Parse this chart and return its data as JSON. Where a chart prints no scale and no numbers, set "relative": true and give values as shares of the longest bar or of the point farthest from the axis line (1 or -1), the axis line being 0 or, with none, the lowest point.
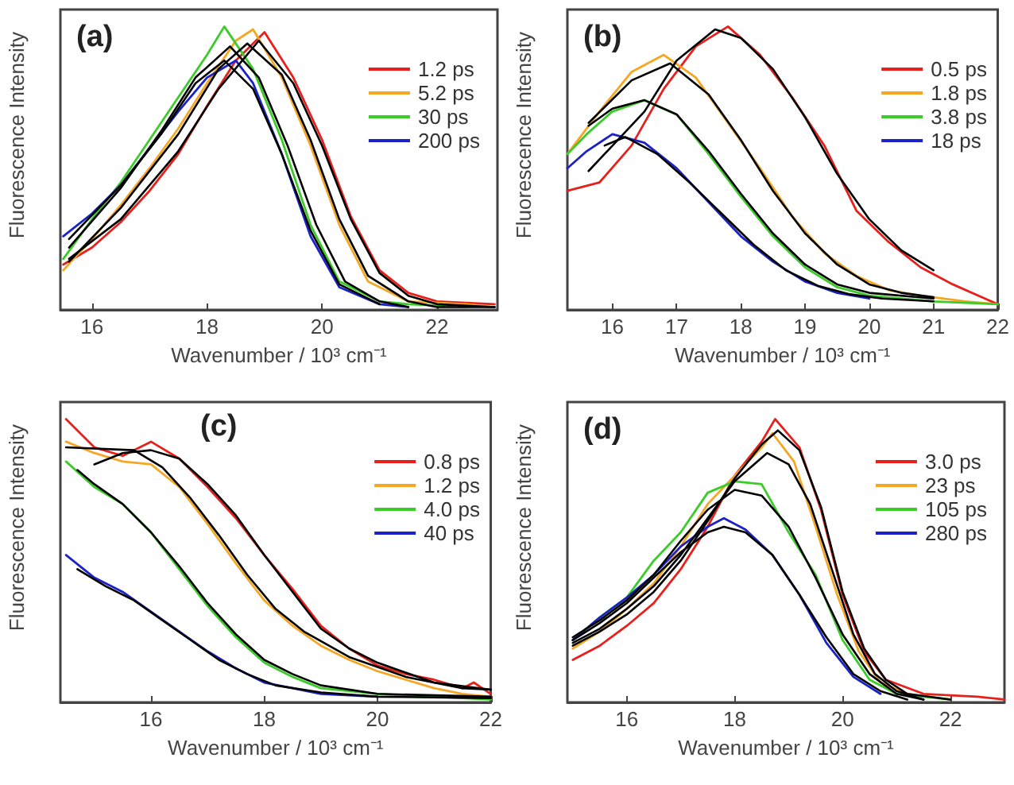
{
  "chart_data": [
    {
      "type": "line",
      "relative": true,
      "xlabel": "Wavenumber / 10³ cm⁻¹",
      "ylabel": "Fluorescence Intensity",
      "annotations": [
        "(a)"
      ],
      "xlim": [
        15.45,
        23.05
      ],
      "xticks": [
        16,
        18,
        20,
        22
      ],
      "legend": "top right",
      "marker": "none",
      "line_style": "solid",
      "grid": false,
      "series": [
        {
          "name": "1.2 ps",
          "color": "#e8201c",
          "x": [
            15.5,
            16,
            16.5,
            17,
            17.5,
            18,
            18.5,
            19,
            19.5,
            20,
            20.5,
            21,
            21.5,
            22,
            23
          ],
          "values": [
            0.16,
            0.22,
            0.31,
            0.42,
            0.55,
            0.72,
            0.88,
            0.98,
            0.82,
            0.6,
            0.33,
            0.14,
            0.06,
            0.03,
            0.02
          ]
        },
        {
          "name": "5.2 ps",
          "color": "#f5a623",
          "x": [
            15.5,
            16,
            16.5,
            17,
            17.5,
            18,
            18.5,
            18.8,
            19.3,
            19.8,
            20.3,
            20.8,
            21.5,
            22.5,
            23
          ],
          "values": [
            0.14,
            0.25,
            0.37,
            0.5,
            0.64,
            0.8,
            0.95,
            0.99,
            0.82,
            0.58,
            0.3,
            0.1,
            0.03,
            0.02,
            0.01
          ]
        },
        {
          "name": "30 ps",
          "color": "#3ccc2a",
          "x": [
            15.5,
            16,
            16.5,
            17,
            17.5,
            18,
            18.3,
            18.8,
            19.3,
            19.8,
            20.3,
            21,
            21.5,
            22.5
          ],
          "values": [
            0.18,
            0.32,
            0.45,
            0.6,
            0.75,
            0.9,
            1.0,
            0.85,
            0.6,
            0.3,
            0.1,
            0.03,
            0.02,
            0.01
          ]
        },
        {
          "name": "200 ps",
          "color": "#1a22c8",
          "x": [
            15.5,
            16,
            16.5,
            17,
            17.5,
            18,
            18.5,
            18.8,
            19.3,
            19.8,
            20.3,
            21,
            21.5
          ],
          "values": [
            0.26,
            0.34,
            0.44,
            0.57,
            0.7,
            0.82,
            0.88,
            0.8,
            0.55,
            0.26,
            0.08,
            0.02,
            0.01
          ]
        },
        {
          "color": "#000000",
          "x": [
            15.6,
            16.5,
            17.5,
            18.2,
            18.9,
            19.5,
            20,
            20.5,
            21,
            21.5,
            22,
            23
          ],
          "values": [
            0.18,
            0.32,
            0.56,
            0.78,
            0.95,
            0.8,
            0.58,
            0.32,
            0.13,
            0.05,
            0.02,
            0.01
          ]
        },
        {
          "color": "#000000",
          "x": [
            15.6,
            16.5,
            17.5,
            18.2,
            18.7,
            19.3,
            19.8,
            20.3,
            20.8,
            21.5,
            22,
            23
          ],
          "values": [
            0.17,
            0.36,
            0.62,
            0.85,
            0.94,
            0.83,
            0.6,
            0.32,
            0.12,
            0.03,
            0.01,
            0.01
          ]
        },
        {
          "color": "#000000",
          "x": [
            15.6,
            16.5,
            17.2,
            17.8,
            18.4,
            18.9,
            19.4,
            19.9,
            20.4,
            21,
            21.5
          ],
          "values": [
            0.22,
            0.43,
            0.63,
            0.82,
            0.93,
            0.82,
            0.58,
            0.3,
            0.1,
            0.03,
            0.01
          ]
        },
        {
          "color": "#000000",
          "x": [
            15.6,
            16.5,
            17.2,
            17.8,
            18.3,
            18.8,
            19.3,
            19.8,
            20.3,
            21
          ],
          "values": [
            0.25,
            0.44,
            0.62,
            0.8,
            0.88,
            0.78,
            0.55,
            0.28,
            0.09,
            0.02
          ]
        }
      ]
    },
    {
      "type": "line",
      "relative": true,
      "xlabel": "Wavenumber / 10³ cm⁻¹",
      "ylabel": "Fluorescence Intensity",
      "annotations": [
        "(b)"
      ],
      "xlim": [
        15.3,
        22
      ],
      "xticks": [
        16,
        17,
        18,
        19,
        20,
        21,
        22
      ],
      "legend": "top right",
      "marker": "none",
      "line_style": "solid",
      "grid": false,
      "series": [
        {
          "name": "0.5 ps",
          "color": "#e8201c",
          "x": [
            15.3,
            15.8,
            16.3,
            16.8,
            17.3,
            17.8,
            18.3,
            18.8,
            19.3,
            19.8,
            20.3,
            20.8,
            21.3,
            21.8,
            22
          ],
          "values": [
            0.42,
            0.45,
            0.58,
            0.78,
            0.93,
            1.0,
            0.9,
            0.75,
            0.58,
            0.35,
            0.24,
            0.15,
            0.09,
            0.04,
            0.02
          ]
        },
        {
          "name": "1.8 ps",
          "color": "#f5a623",
          "x": [
            15.3,
            15.8,
            16.3,
            16.8,
            17.3,
            17.8,
            18.3,
            18.8,
            19.3,
            19.8,
            20.3,
            20.8,
            21.5,
            22
          ],
          "values": [
            0.55,
            0.7,
            0.84,
            0.9,
            0.82,
            0.66,
            0.5,
            0.33,
            0.2,
            0.12,
            0.07,
            0.05,
            0.03,
            0.02
          ]
        },
        {
          "name": "3.8 ps",
          "color": "#3ccc2a",
          "x": [
            15.3,
            15.6,
            16,
            16.5,
            17,
            17.5,
            18,
            18.5,
            19,
            19.5,
            20,
            21,
            22
          ],
          "values": [
            0.55,
            0.62,
            0.7,
            0.74,
            0.69,
            0.55,
            0.4,
            0.26,
            0.15,
            0.08,
            0.05,
            0.03,
            0.02
          ]
        },
        {
          "name": "18 ps",
          "color": "#1a22c8",
          "x": [
            15.3,
            15.6,
            16,
            16.5,
            17,
            17.5,
            18,
            18.5,
            19,
            19.5,
            20
          ],
          "values": [
            0.5,
            0.56,
            0.62,
            0.59,
            0.5,
            0.38,
            0.26,
            0.17,
            0.1,
            0.06,
            0.04
          ]
        },
        {
          "color": "#000000",
          "x": [
            15.63,
            16.5,
            17,
            17.6,
            18,
            18.5,
            19,
            19.5,
            20,
            20.5,
            21
          ],
          "values": [
            0.49,
            0.7,
            0.88,
            0.99,
            0.96,
            0.85,
            0.68,
            0.48,
            0.32,
            0.21,
            0.14
          ]
        },
        {
          "color": "#000000",
          "x": [
            15.63,
            16.3,
            16.9,
            17.5,
            18,
            18.5,
            19,
            19.5,
            20,
            20.5,
            21
          ],
          "values": [
            0.66,
            0.81,
            0.87,
            0.76,
            0.6,
            0.42,
            0.27,
            0.16,
            0.09,
            0.06,
            0.045
          ]
        },
        {
          "color": "#000000",
          "x": [
            15.63,
            16,
            16.5,
            17,
            17.5,
            18,
            18.5,
            19,
            19.5,
            20,
            21
          ],
          "values": [
            0.65,
            0.71,
            0.74,
            0.69,
            0.56,
            0.41,
            0.27,
            0.16,
            0.09,
            0.06,
            0.04
          ]
        },
        {
          "color": "#000000",
          "x": [
            15.88,
            16.2,
            16.7,
            17.2,
            17.7,
            18.2,
            18.7,
            19.2,
            19.7,
            20.2,
            21
          ],
          "values": [
            0.58,
            0.61,
            0.55,
            0.45,
            0.34,
            0.23,
            0.14,
            0.085,
            0.055,
            0.04,
            0.03
          ]
        }
      ]
    },
    {
      "type": "line",
      "relative": true,
      "xlabel": "Wavenumber / 10³ cm⁻¹",
      "ylabel": "Fluorescence Intensity",
      "annotations": [
        "(c)"
      ],
      "xlim": [
        14.4,
        22
      ],
      "xticks": [
        16,
        18,
        20,
        22
      ],
      "legend": "top right",
      "marker": "none",
      "line_style": "solid",
      "grid": false,
      "series": [
        {
          "name": "0.8 ps",
          "color": "#e8201c",
          "x": [
            14.5,
            15,
            15.5,
            16,
            16.5,
            17,
            17.5,
            18,
            18.5,
            19,
            19.5,
            20,
            20.5,
            21,
            21.5,
            21.7,
            22
          ],
          "values": [
            1.0,
            0.9,
            0.87,
            0.92,
            0.86,
            0.76,
            0.65,
            0.52,
            0.4,
            0.27,
            0.19,
            0.13,
            0.1,
            0.08,
            0.05,
            0.07,
            0.03
          ]
        },
        {
          "name": "1.2 ps",
          "color": "#f5a623",
          "x": [
            14.5,
            15,
            15.5,
            16,
            16.5,
            17,
            17.5,
            18,
            18.5,
            19,
            19.5,
            20,
            20.5,
            21,
            21.5,
            22
          ],
          "values": [
            0.92,
            0.88,
            0.85,
            0.84,
            0.76,
            0.63,
            0.49,
            0.36,
            0.27,
            0.2,
            0.15,
            0.11,
            0.08,
            0.05,
            0.03,
            0.02
          ]
        },
        {
          "name": "4.0 ps",
          "color": "#3ccc2a",
          "x": [
            14.5,
            15,
            15.5,
            16,
            16.5,
            17,
            17.5,
            18,
            18.5,
            19,
            20,
            21,
            22
          ],
          "values": [
            0.85,
            0.76,
            0.7,
            0.6,
            0.47,
            0.34,
            0.23,
            0.14,
            0.09,
            0.05,
            0.03,
            0.02,
            0.01
          ]
        },
        {
          "name": "40 ps",
          "color": "#1a22c8",
          "x": [
            14.5,
            15,
            15.5,
            16,
            16.5,
            17,
            17.5,
            18,
            18.5,
            19,
            20
          ],
          "values": [
            0.52,
            0.44,
            0.39,
            0.32,
            0.25,
            0.18,
            0.12,
            0.07,
            0.05,
            0.03,
            0.02
          ]
        },
        {
          "color": "#000000",
          "x": [
            15,
            15.5,
            16,
            16.5,
            17,
            17.5,
            18,
            18.5,
            19,
            19.5,
            20,
            21,
            22
          ],
          "values": [
            0.84,
            0.88,
            0.89,
            0.86,
            0.77,
            0.66,
            0.52,
            0.39,
            0.26,
            0.19,
            0.14,
            0.07,
            0.045
          ]
        },
        {
          "color": "#000000",
          "x": [
            14.5,
            15.7,
            16.2,
            16.7,
            17.2,
            17.7,
            18.2,
            18.7,
            19.5,
            20.5,
            21.5,
            22
          ],
          "values": [
            0.9,
            0.89,
            0.83,
            0.72,
            0.59,
            0.45,
            0.33,
            0.25,
            0.16,
            0.09,
            0.05,
            0.045
          ]
        },
        {
          "color": "#000000",
          "x": [
            14.7,
            15,
            15.5,
            16,
            16.5,
            17,
            17.5,
            18,
            18.5,
            19,
            20,
            22
          ],
          "values": [
            0.82,
            0.77,
            0.7,
            0.6,
            0.48,
            0.35,
            0.24,
            0.15,
            0.1,
            0.06,
            0.03,
            0.02
          ]
        },
        {
          "color": "#000000",
          "x": [
            14.7,
            15.2,
            15.7,
            16.2,
            16.7,
            17.2,
            17.7,
            18.2,
            19,
            20,
            22
          ],
          "values": [
            0.47,
            0.41,
            0.36,
            0.29,
            0.22,
            0.15,
            0.1,
            0.06,
            0.035,
            0.02,
            0.015
          ]
        }
      ]
    },
    {
      "type": "line",
      "relative": true,
      "xlabel": "Wavenumber / 10³ cm⁻¹",
      "ylabel": "Fluorescence Intensity",
      "annotations": [
        "(d)"
      ],
      "xlim": [
        14.9,
        23
      ],
      "xticks": [
        16,
        18,
        20,
        22
      ],
      "legend": "top right",
      "marker": "none",
      "line_style": "solid",
      "grid": false,
      "series": [
        {
          "name": "3.0 ps",
          "color": "#e8201c",
          "x": [
            15,
            15.5,
            16,
            16.5,
            17,
            17.5,
            18,
            18.5,
            18.75,
            19.2,
            19.6,
            20,
            20.4,
            20.8,
            21.5,
            22.5,
            23
          ],
          "values": [
            0.15,
            0.2,
            0.27,
            0.35,
            0.47,
            0.62,
            0.8,
            0.92,
            1.0,
            0.9,
            0.68,
            0.38,
            0.18,
            0.08,
            0.03,
            0.02,
            0.01
          ]
        },
        {
          "name": "23 ps",
          "color": "#f5a623",
          "x": [
            15,
            15.5,
            16,
            16.5,
            17,
            17.5,
            18,
            18.5,
            18.7,
            19.1,
            19.5,
            19.9,
            20.3,
            20.7,
            21.2,
            22
          ],
          "values": [
            0.19,
            0.25,
            0.33,
            0.42,
            0.55,
            0.7,
            0.8,
            0.9,
            0.95,
            0.85,
            0.62,
            0.38,
            0.18,
            0.07,
            0.03,
            0.01
          ]
        },
        {
          "name": "105 ps",
          "color": "#3ccc2a",
          "x": [
            15,
            15.5,
            16,
            16.5,
            17,
            17.5,
            18,
            18.5,
            19,
            19.5,
            20,
            20.5,
            21,
            22
          ],
          "values": [
            0.22,
            0.3,
            0.37,
            0.5,
            0.6,
            0.74,
            0.78,
            0.77,
            0.6,
            0.45,
            0.22,
            0.08,
            0.03,
            0.01
          ]
        },
        {
          "name": "280 ps",
          "color": "#1a22c8",
          "x": [
            15,
            15.5,
            16,
            16.5,
            17,
            17.5,
            17.8,
            18.2,
            18.7,
            19.2,
            19.7,
            20.2,
            20.7
          ],
          "values": [
            0.22,
            0.3,
            0.37,
            0.45,
            0.55,
            0.62,
            0.65,
            0.61,
            0.52,
            0.38,
            0.21,
            0.09,
            0.03
          ]
        },
        {
          "color": "#000000",
          "x": [
            15,
            15.5,
            16,
            16.5,
            17,
            17.5,
            18,
            18.5,
            18.8,
            19.2,
            19.6,
            20,
            20.4,
            20.8,
            21.2,
            22
          ],
          "values": [
            0.2,
            0.25,
            0.31,
            0.39,
            0.5,
            0.64,
            0.79,
            0.91,
            0.96,
            0.89,
            0.69,
            0.39,
            0.19,
            0.08,
            0.03,
            0.01
          ]
        },
        {
          "color": "#000000",
          "x": [
            15,
            15.5,
            16,
            16.5,
            17,
            17.5,
            18,
            18.6,
            19,
            19.4,
            19.8,
            20.2,
            20.6,
            21,
            21.5
          ],
          "values": [
            0.21,
            0.26,
            0.33,
            0.41,
            0.52,
            0.65,
            0.78,
            0.88,
            0.84,
            0.7,
            0.47,
            0.24,
            0.1,
            0.04,
            0.01
          ]
        },
        {
          "color": "#000000",
          "x": [
            15,
            15.5,
            16,
            16.5,
            17,
            17.5,
            18,
            18.5,
            19,
            19.5,
            20,
            20.5,
            21,
            21.5
          ],
          "values": [
            0.23,
            0.29,
            0.36,
            0.45,
            0.57,
            0.68,
            0.75,
            0.73,
            0.62,
            0.44,
            0.24,
            0.1,
            0.03,
            0.01
          ]
        },
        {
          "color": "#000000",
          "x": [
            15,
            15.5,
            16,
            16.5,
            17,
            17.5,
            17.8,
            18.2,
            18.7,
            19.2,
            19.7,
            20.2,
            20.7,
            21.2
          ],
          "values": [
            0.22,
            0.28,
            0.35,
            0.44,
            0.53,
            0.6,
            0.62,
            0.6,
            0.52,
            0.38,
            0.23,
            0.1,
            0.04,
            0.01
          ]
        }
      ]
    }
  ]
}
